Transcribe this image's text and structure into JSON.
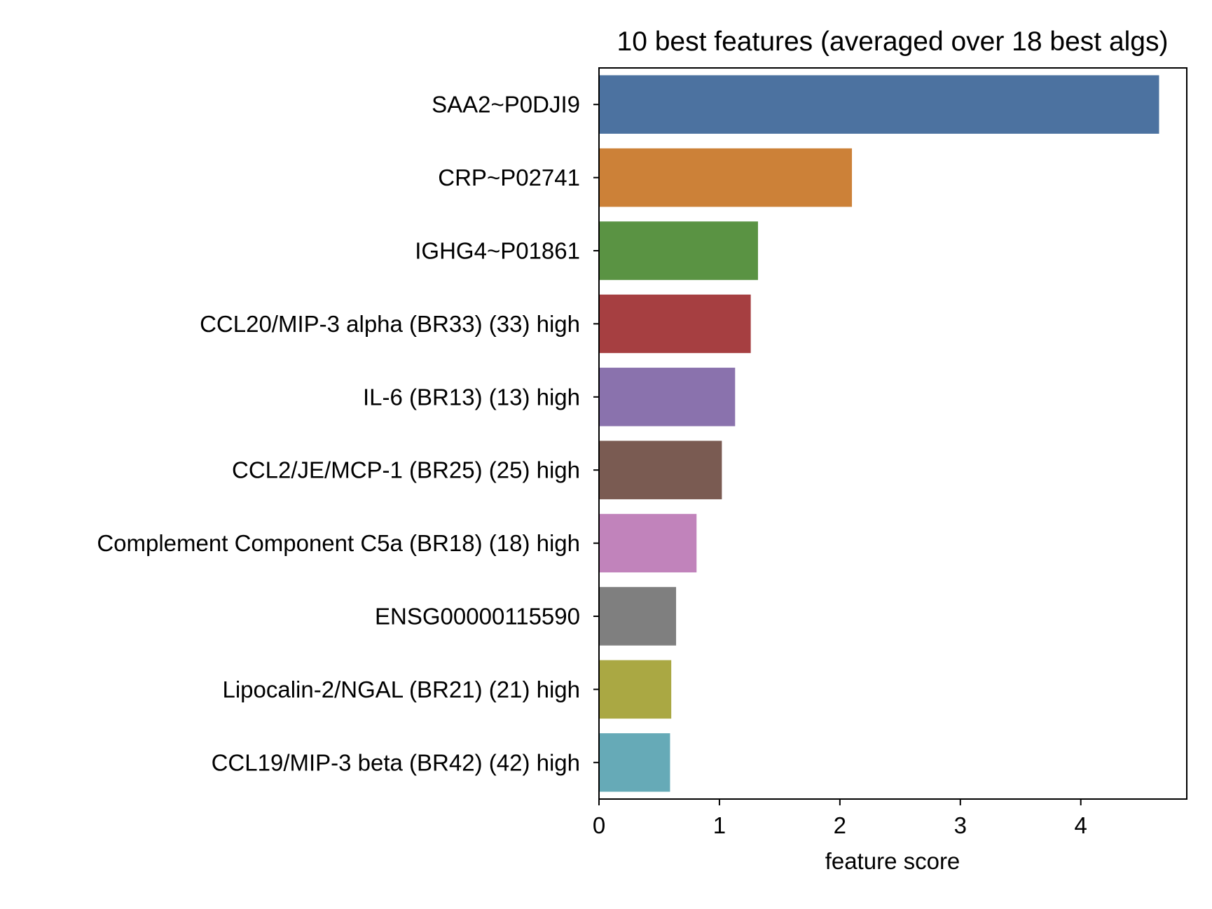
{
  "chart_data": {
    "type": "bar",
    "orientation": "horizontal",
    "title": "10 best features (averaged over 18 best algs)",
    "xlabel": "feature score",
    "ylabel": "",
    "xlim": [
      0,
      4.88
    ],
    "xticks": [
      0,
      1,
      2,
      3,
      4
    ],
    "grid": false,
    "categories": [
      "SAA2~P0DJI9",
      "CRP~P02741",
      "IGHG4~P01861",
      "CCL20/MIP-3 alpha (BR33) (33) high",
      "IL-6 (BR13) (13) high",
      "CCL2/JE/MCP-1 (BR25) (25) high",
      "Complement Component C5a (BR18) (18) high",
      "ENSG00000115590",
      "Lipocalin-2/NGAL (BR21) (21) high",
      "CCL19/MIP-3 beta (BR42) (42) high"
    ],
    "values": [
      4.65,
      2.1,
      1.32,
      1.26,
      1.13,
      1.02,
      0.81,
      0.64,
      0.6,
      0.59
    ],
    "colors": [
      "#4c72a0",
      "#cc8138",
      "#5a9343",
      "#a63f41",
      "#8a72ad",
      "#7a5b52",
      "#c183bb",
      "#7f7f7f",
      "#aaa843",
      "#66aab7"
    ]
  }
}
